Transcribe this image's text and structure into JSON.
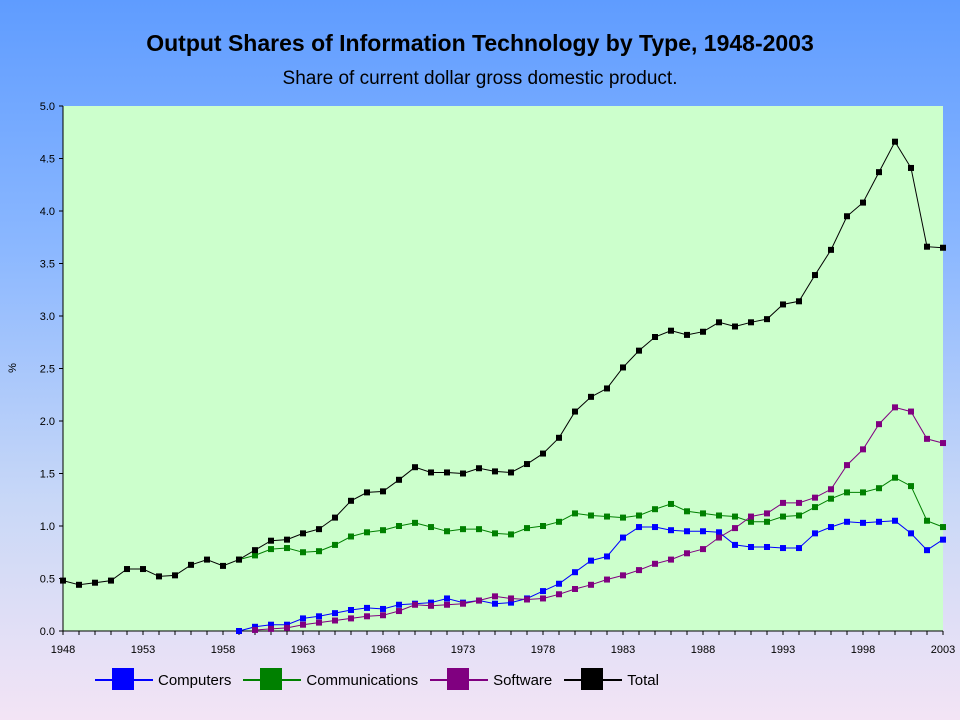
{
  "chart_data": {
    "type": "line",
    "title": "Output Shares of Information Technology by Type, 1948-2003",
    "subtitle": "Share of current dollar gross domestic product.",
    "ylabel": "%",
    "xlabel": "",
    "xlim": [
      1948,
      2003
    ],
    "ylim": [
      0,
      5
    ],
    "x_ticks": [
      "1948",
      "1953",
      "1958",
      "1963",
      "1968",
      "1973",
      "1978",
      "1983",
      "1988",
      "1993",
      "1998",
      "2003"
    ],
    "y_ticks": [
      "0.0",
      "0.5",
      "1.0",
      "1.5",
      "2.0",
      "2.5",
      "3.0",
      "3.5",
      "4.0",
      "4.5",
      "5.0"
    ],
    "grid": false,
    "legend_position": "bottom",
    "plot_background": "#ccffcc",
    "series": [
      {
        "name": "Computers",
        "color": "#0000ff",
        "x": [
          1959,
          1960,
          1961,
          1962,
          1963,
          1964,
          1965,
          1966,
          1967,
          1968,
          1969,
          1970,
          1971,
          1972,
          1973,
          1974,
          1975,
          1976,
          1977,
          1978,
          1979,
          1980,
          1981,
          1982,
          1983,
          1984,
          1985,
          1986,
          1987,
          1988,
          1989,
          1990,
          1991,
          1992,
          1993,
          1994,
          1995,
          1996,
          1997,
          1998,
          1999,
          2000,
          2001,
          2002,
          2003
        ],
        "values": [
          0.0,
          0.04,
          0.06,
          0.06,
          0.12,
          0.14,
          0.17,
          0.2,
          0.22,
          0.21,
          0.25,
          0.26,
          0.27,
          0.31,
          0.27,
          0.29,
          0.26,
          0.27,
          0.31,
          0.38,
          0.45,
          0.56,
          0.67,
          0.71,
          0.89,
          0.99,
          0.99,
          0.96,
          0.95,
          0.95,
          0.94,
          0.82,
          0.8,
          0.8,
          0.79,
          0.79,
          0.93,
          0.99,
          1.04,
          1.03,
          1.04,
          1.05,
          0.93,
          0.77,
          0.87
        ]
      },
      {
        "name": "Communications",
        "color": "#008000",
        "x": [
          1959,
          1960,
          1961,
          1962,
          1963,
          1964,
          1965,
          1966,
          1967,
          1968,
          1969,
          1970,
          1971,
          1972,
          1973,
          1974,
          1975,
          1976,
          1977,
          1978,
          1979,
          1980,
          1981,
          1982,
          1983,
          1984,
          1985,
          1986,
          1987,
          1988,
          1989,
          1990,
          1991,
          1992,
          1993,
          1994,
          1995,
          1996,
          1997,
          1998,
          1999,
          2000,
          2001,
          2002,
          2003
        ],
        "values": [
          0.68,
          0.72,
          0.78,
          0.79,
          0.75,
          0.76,
          0.82,
          0.9,
          0.94,
          0.96,
          1.0,
          1.03,
          0.99,
          0.95,
          0.97,
          0.97,
          0.93,
          0.92,
          0.98,
          1.0,
          1.04,
          1.12,
          1.1,
          1.09,
          1.08,
          1.1,
          1.16,
          1.21,
          1.14,
          1.12,
          1.1,
          1.09,
          1.04,
          1.04,
          1.09,
          1.1,
          1.18,
          1.26,
          1.32,
          1.32,
          1.36,
          1.46,
          1.38,
          1.05,
          0.99
        ]
      },
      {
        "name": "Software",
        "color": "#800080",
        "x": [
          1960,
          1961,
          1962,
          1963,
          1964,
          1965,
          1966,
          1967,
          1968,
          1969,
          1970,
          1971,
          1972,
          1973,
          1974,
          1975,
          1976,
          1977,
          1978,
          1979,
          1980,
          1981,
          1982,
          1983,
          1984,
          1985,
          1986,
          1987,
          1988,
          1989,
          1990,
          1991,
          1992,
          1993,
          1994,
          1995,
          1996,
          1997,
          1998,
          1999,
          2000,
          2001,
          2002,
          2003
        ],
        "values": [
          0.01,
          0.02,
          0.03,
          0.06,
          0.08,
          0.1,
          0.12,
          0.14,
          0.15,
          0.19,
          0.25,
          0.24,
          0.25,
          0.26,
          0.29,
          0.33,
          0.31,
          0.3,
          0.31,
          0.35,
          0.4,
          0.44,
          0.49,
          0.53,
          0.58,
          0.64,
          0.68,
          0.74,
          0.78,
          0.89,
          0.98,
          1.09,
          1.12,
          1.22,
          1.22,
          1.27,
          1.35,
          1.58,
          1.73,
          1.97,
          2.13,
          2.09,
          1.83,
          1.79
        ]
      },
      {
        "name": "Total",
        "color": "#000000",
        "x": [
          1948,
          1949,
          1950,
          1951,
          1952,
          1953,
          1954,
          1955,
          1956,
          1957,
          1958,
          1959,
          1960,
          1961,
          1962,
          1963,
          1964,
          1965,
          1966,
          1967,
          1968,
          1969,
          1970,
          1971,
          1972,
          1973,
          1974,
          1975,
          1976,
          1977,
          1978,
          1979,
          1980,
          1981,
          1982,
          1983,
          1984,
          1985,
          1986,
          1987,
          1988,
          1989,
          1990,
          1991,
          1992,
          1993,
          1994,
          1995,
          1996,
          1997,
          1998,
          1999,
          2000,
          2001,
          2002,
          2003
        ],
        "values": [
          0.48,
          0.44,
          0.46,
          0.48,
          0.59,
          0.59,
          0.52,
          0.53,
          0.63,
          0.68,
          0.62,
          0.68,
          0.77,
          0.86,
          0.87,
          0.93,
          0.97,
          1.08,
          1.24,
          1.32,
          1.33,
          1.44,
          1.56,
          1.51,
          1.51,
          1.5,
          1.55,
          1.52,
          1.51,
          1.59,
          1.69,
          1.84,
          2.09,
          2.23,
          2.31,
          2.51,
          2.67,
          2.8,
          2.86,
          2.82,
          2.85,
          2.94,
          2.9,
          2.94,
          2.97,
          3.11,
          3.14,
          3.39,
          3.63,
          3.95,
          4.08,
          4.37,
          4.66,
          4.41,
          3.66,
          3.65
        ]
      }
    ]
  }
}
